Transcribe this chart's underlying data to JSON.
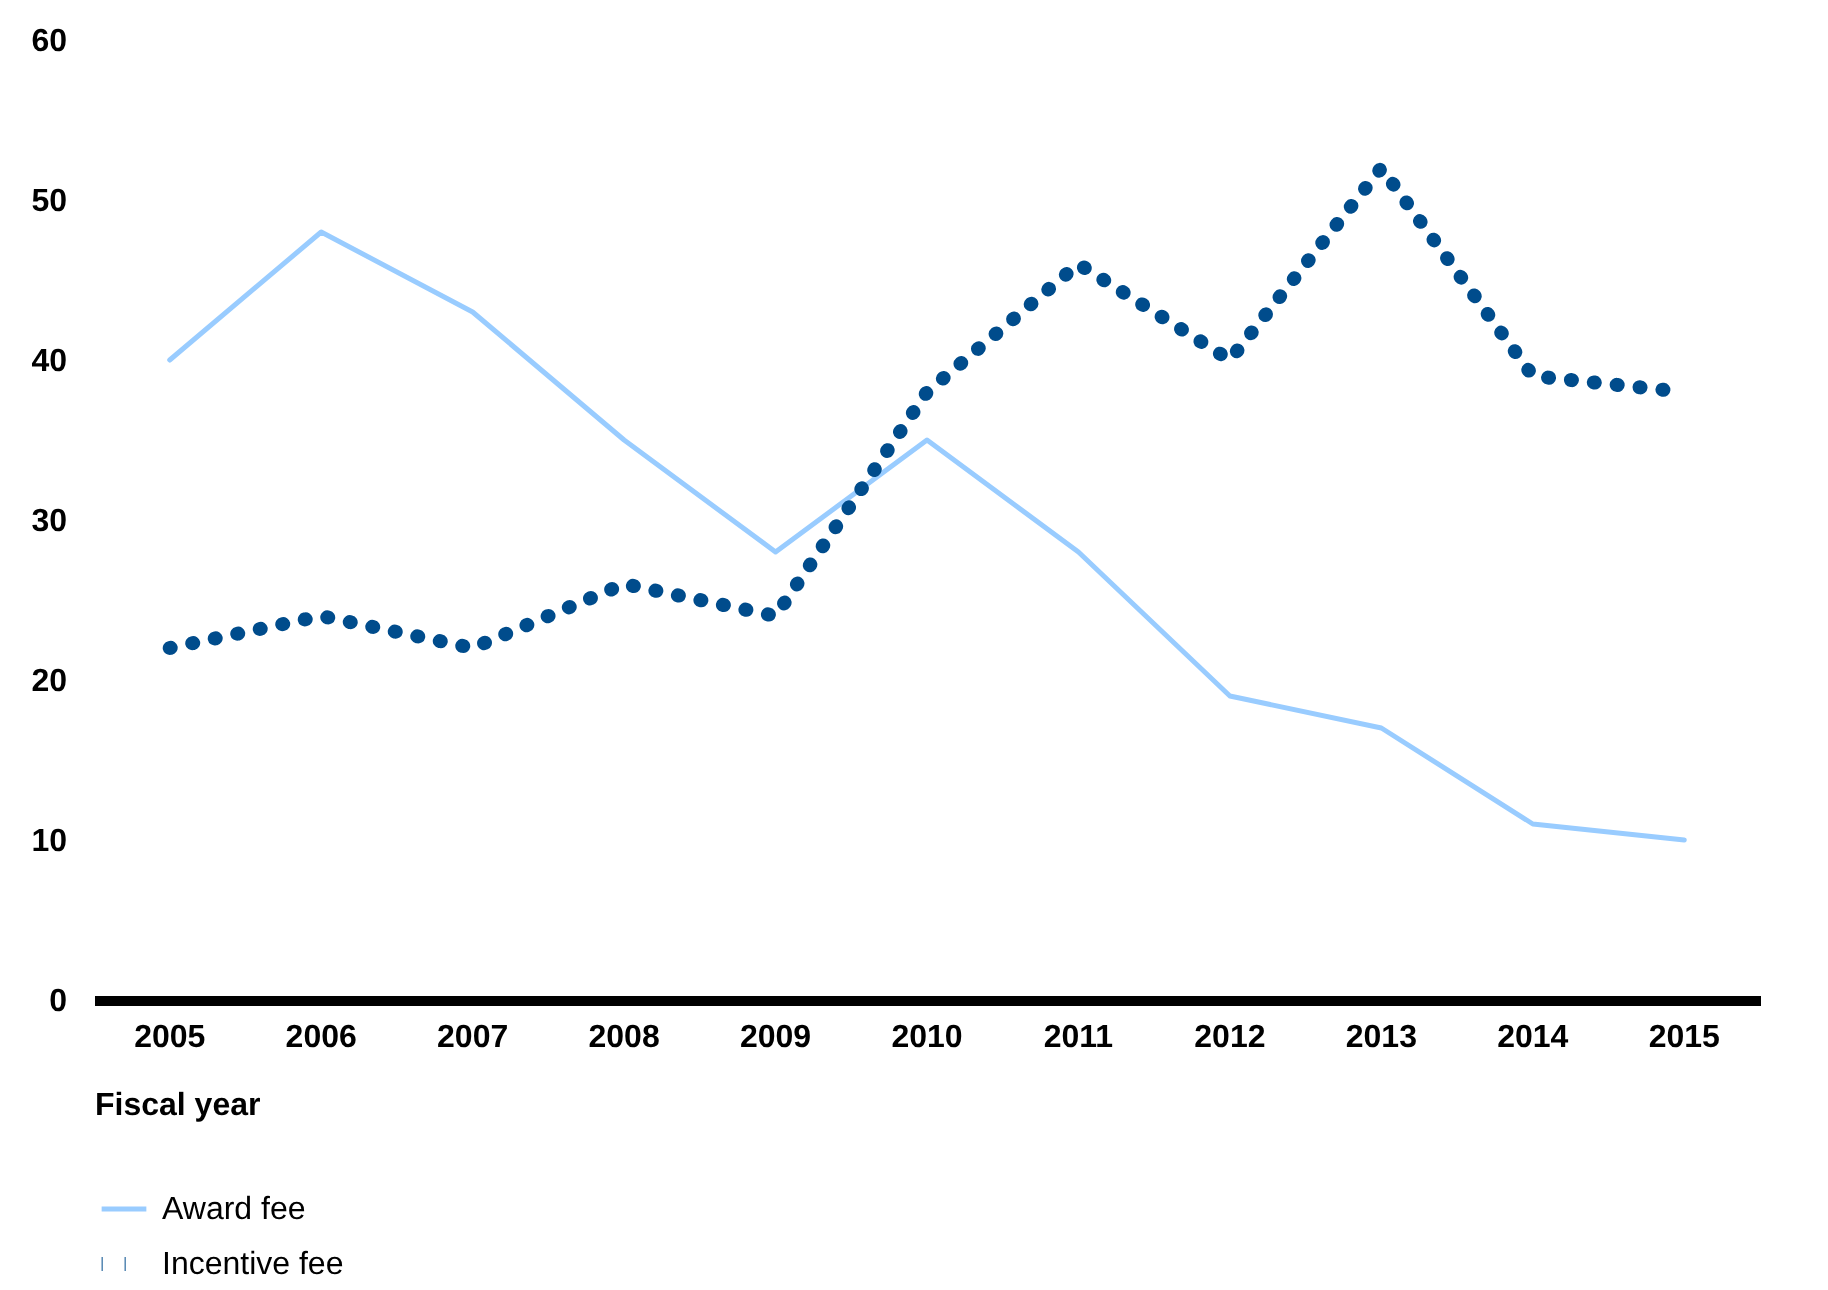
{
  "chart_data": {
    "type": "line",
    "xlabel": "Fiscal year",
    "categories": [
      "2005",
      "2006",
      "2007",
      "2008",
      "2009",
      "2010",
      "2011",
      "2012",
      "2013",
      "2014",
      "2015"
    ],
    "series": [
      {
        "name": "Award fee",
        "color": "#99ccff",
        "line_style": "solid",
        "values": [
          40,
          48,
          43,
          35,
          28,
          35,
          28,
          19,
          17,
          11,
          10
        ]
      },
      {
        "name": "Incentive fee",
        "color": "#004c8c",
        "line_style": "dotted",
        "values": [
          22,
          24,
          22,
          26,
          24,
          38,
          46,
          40,
          52,
          39,
          38
        ]
      }
    ],
    "ylim": [
      0,
      60
    ],
    "yticks": [
      0,
      10,
      20,
      30,
      40,
      50,
      60
    ],
    "grid": false,
    "legend": "bottom left"
  }
}
